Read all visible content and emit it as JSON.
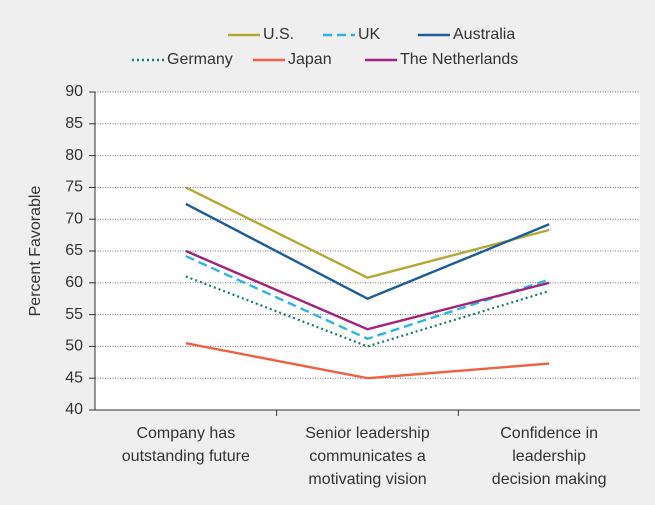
{
  "chart_data": {
    "type": "line",
    "y_label": "Percent Favorable",
    "categories": [
      [
        "Company has",
        "outstanding future"
      ],
      [
        "Senior leadership",
        "communicates a",
        "motivating vision"
      ],
      [
        "Confidence in",
        "leadership",
        "decision making"
      ]
    ],
    "series": [
      {
        "name": "U.S.",
        "color": "#b0aa32",
        "dash": "solid",
        "values": [
          75,
          60.8,
          68.3
        ]
      },
      {
        "name": "UK",
        "color": "#2bb5e6",
        "dash": "dashed",
        "values": [
          64.2,
          51.2,
          60.5
        ]
      },
      {
        "name": "Australia",
        "color": "#1c5c98",
        "dash": "solid",
        "values": [
          72.4,
          57.5,
          69.2
        ]
      },
      {
        "name": "Germany",
        "color": "#1b7a6c",
        "dash": "dotted",
        "values": [
          61,
          50,
          58.7
        ]
      },
      {
        "name": "Japan",
        "color": "#ef6140",
        "dash": "solid",
        "values": [
          50.5,
          45,
          47.3
        ]
      },
      {
        "name": "The Netherlands",
        "color": "#a3237c",
        "dash": "solid",
        "values": [
          65,
          52.7,
          60
        ]
      }
    ],
    "ylim": [
      40,
      90
    ],
    "yticks": [
      40,
      45,
      50,
      55,
      60,
      65,
      70,
      75,
      80,
      85,
      90
    ],
    "grid": true
  }
}
